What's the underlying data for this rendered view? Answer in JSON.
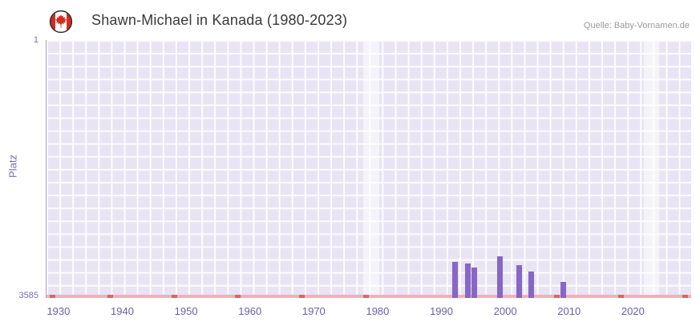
{
  "chart_data": {
    "type": "bar",
    "title": "Shawn-Michael in Kanada (1980-2023)",
    "source": "Quelle: Baby-Vornamen.de",
    "xlabel": "",
    "ylabel": "Platz",
    "y_axis": {
      "min": 1,
      "max": 3585,
      "inverted": true,
      "top_label": "1",
      "bottom_label": "3585"
    },
    "x_axis": {
      "range": [
        1928,
        2029
      ],
      "ticks": [
        1930,
        1940,
        1950,
        1960,
        1970,
        1980,
        1990,
        2000,
        2010,
        2020
      ]
    },
    "bars": [
      {
        "year": 1992,
        "rank": 3080
      },
      {
        "year": 1994,
        "rank": 3110
      },
      {
        "year": 1995,
        "rank": 3160
      },
      {
        "year": 1999,
        "rank": 3010
      },
      {
        "year": 2002,
        "rank": 3130
      },
      {
        "year": 2004,
        "rank": 3220
      },
      {
        "year": 2009,
        "rank": 3360
      }
    ],
    "baseline": {
      "rank_label": "3585",
      "color": "#f3b0b7",
      "marker_color": "#e4606a",
      "marker_years": [
        1929,
        1938,
        1948,
        1958,
        1968,
        1978,
        2008,
        2018,
        2028
      ]
    },
    "bands": [
      {
        "from": 1977.6,
        "to": 1980.1
      },
      {
        "from": 2021.6,
        "to": 2024.0
      }
    ],
    "colors": {
      "bar": "#8766c5",
      "plot_bg": "#e8e4f4",
      "grid": "#ffffff",
      "axis_text": "#6a5fa8",
      "band": "rgba(255,255,255,0.55)"
    },
    "legend": false,
    "grid": true
  },
  "icons": {
    "flag": "canada-flag-icon"
  }
}
